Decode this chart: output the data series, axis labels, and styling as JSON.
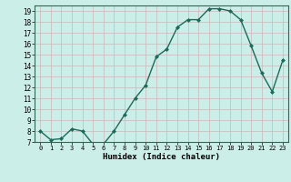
{
  "x": [
    0,
    1,
    2,
    3,
    4,
    5,
    6,
    7,
    8,
    9,
    10,
    11,
    12,
    13,
    14,
    15,
    16,
    17,
    18,
    19,
    20,
    21,
    22,
    23
  ],
  "y": [
    8.0,
    7.2,
    7.3,
    8.2,
    8.0,
    6.8,
    6.8,
    8.0,
    9.5,
    11.0,
    12.2,
    14.8,
    15.5,
    17.5,
    18.2,
    18.2,
    19.2,
    19.2,
    19.0,
    18.2,
    15.8,
    13.3,
    11.6,
    14.5
  ],
  "xlabel": "Humidex (Indice chaleur)",
  "ylim": [
    7,
    19.5
  ],
  "yticks": [
    7,
    8,
    9,
    10,
    11,
    12,
    13,
    14,
    15,
    16,
    17,
    18,
    19
  ],
  "xticks": [
    0,
    1,
    2,
    3,
    4,
    5,
    6,
    7,
    8,
    9,
    10,
    11,
    12,
    13,
    14,
    15,
    16,
    17,
    18,
    19,
    20,
    21,
    22,
    23
  ],
  "line_color": "#1a6b5a",
  "marker_color": "#1a6b5a",
  "bg_color": "#cceee8",
  "grid_color_major": "#c8b8b8",
  "grid_color_minor": "#c8b8b8",
  "outer_bg": "#cceee8"
}
